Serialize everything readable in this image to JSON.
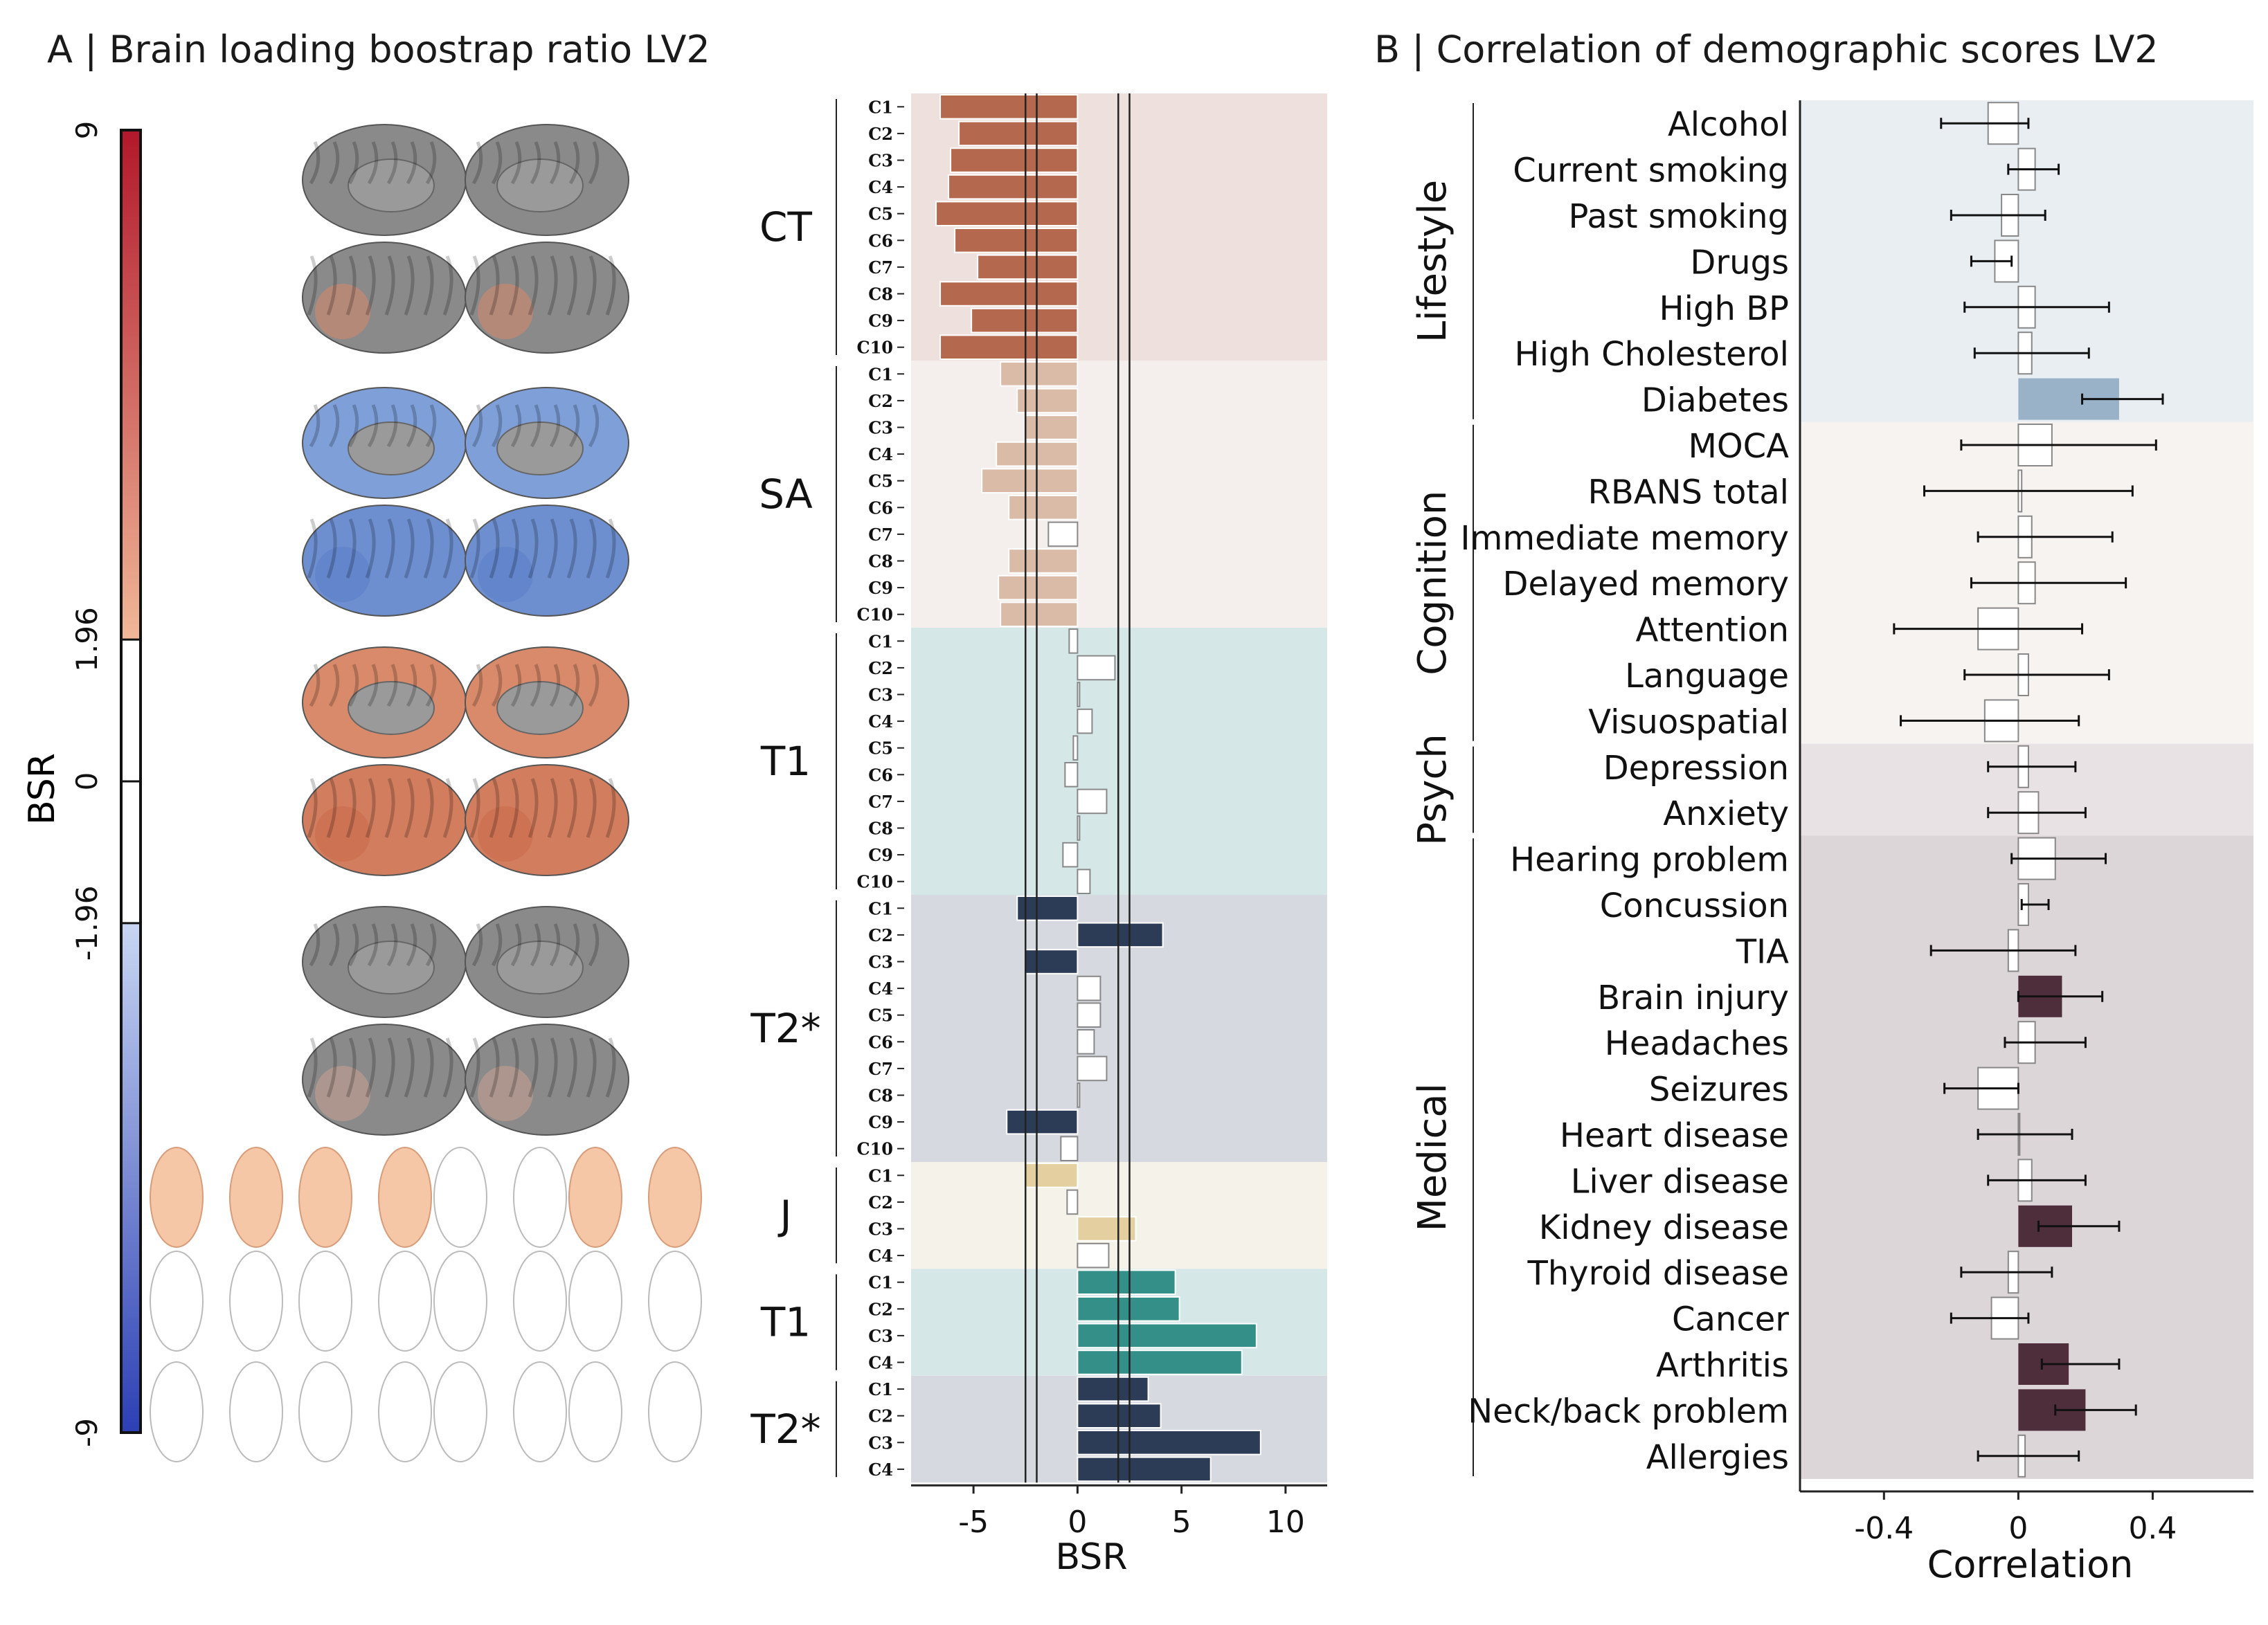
{
  "panel_a": {
    "title": "A | Brain loading boostrap ratio LV2",
    "colorbar": {
      "label": "BSR",
      "ticks": [
        "9",
        "1.96",
        "0",
        "-1.96",
        "-9"
      ],
      "tick_values": [
        9,
        1.96,
        0,
        -1.96,
        -9
      ],
      "colors": {
        "max": "#b2182b",
        "upper_light": "#f0b898",
        "lower_light": "#c8d6f2",
        "min": "#2c3fb4",
        "blank": "#ffffff"
      }
    },
    "brain_rows": [
      {
        "metric": "CT",
        "medial_color": "#8a8a8a",
        "lateral_color": "#8a8a8a",
        "accent": "#d9896a"
      },
      {
        "metric": "SA",
        "medial_color": "#7f9fd8",
        "lateral_color": "#6d8fd0",
        "accent": "#5a7ec6"
      },
      {
        "metric": "T1",
        "medial_color": "#d88a6a",
        "lateral_color": "#d27d5e",
        "accent": "#c86a4a"
      },
      {
        "metric": "T2*",
        "medial_color": "#8a8a8a",
        "lateral_color": "#8a8a8a",
        "accent": "#c9a090"
      }
    ],
    "subcortical_colors": [
      "#f5c7a6",
      "#ffffff"
    ]
  },
  "chart_data": [
    {
      "type": "bar",
      "orientation": "horizontal",
      "xlabel": "BSR",
      "xlim": [
        -8,
        12
      ],
      "xticks": [
        -5,
        0,
        5,
        10
      ],
      "reference_lines": [
        -2.5,
        -1.96,
        1.96,
        2.5
      ],
      "groups": [
        {
          "name": "CT",
          "bg": "#eee0dd",
          "color": "#b4694e",
          "categories": [
            "C1",
            "C2",
            "C3",
            "C4",
            "C5",
            "C6",
            "C7",
            "C8",
            "C9",
            "C10"
          ],
          "values": [
            -6.6,
            -5.7,
            -6.1,
            -6.2,
            -6.8,
            -5.9,
            -4.8,
            -6.6,
            -5.1,
            -6.6
          ]
        },
        {
          "name": "SA",
          "bg": "#f4efec",
          "color": "#d9bba8",
          "categories": [
            "C1",
            "C2",
            "C3",
            "C4",
            "C5",
            "C6",
            "C7",
            "C8",
            "C9",
            "C10"
          ],
          "values": [
            -3.7,
            -2.9,
            -2.5,
            -3.9,
            -4.6,
            -3.3,
            -1.4,
            -3.3,
            -3.8,
            -3.7
          ]
        },
        {
          "name": "T1",
          "bg": "#d6e7e7",
          "color": "#d6e7e7",
          "categories": [
            "C1",
            "C2",
            "C3",
            "C4",
            "C5",
            "C6",
            "C7",
            "C8",
            "C9",
            "C10"
          ],
          "values": [
            -0.4,
            1.8,
            0.1,
            0.7,
            -0.2,
            -0.6,
            1.4,
            0.1,
            -0.7,
            0.6
          ]
        },
        {
          "name": "T2*",
          "bg": "#d6d9df",
          "color": "#2d3c56",
          "categories": [
            "C1",
            "C2",
            "C3",
            "C4",
            "C5",
            "C6",
            "C7",
            "C8",
            "C9",
            "C10"
          ],
          "values": [
            -2.9,
            4.1,
            -2.5,
            1.1,
            1.1,
            0.8,
            1.4,
            0.1,
            -3.4,
            -0.8
          ]
        },
        {
          "name": "J",
          "bg": "#f5f2ea",
          "color": "#e3cfa0",
          "categories": [
            "C1",
            "C2",
            "C3",
            "C4"
          ],
          "values": [
            -2.5,
            -0.5,
            2.8,
            1.5
          ]
        },
        {
          "name": "T1",
          "bg": "#d6e7e7",
          "color": "#338f87",
          "categories": [
            "C1",
            "C2",
            "C3",
            "C4"
          ],
          "values": [
            4.7,
            4.9,
            8.6,
            7.9
          ]
        },
        {
          "name": "T2*",
          "bg": "#d6d9df",
          "color": "#2d3c56",
          "categories": [
            "C1",
            "C2",
            "C3",
            "C4"
          ],
          "values": [
            3.4,
            4.0,
            8.8,
            6.4
          ]
        }
      ]
    },
    {
      "type": "bar",
      "orientation": "horizontal",
      "title": "B | Correlation of demographic scores LV2",
      "xlabel": "Correlation",
      "xlim": [
        -0.65,
        0.7
      ],
      "xticks": [
        -0.4,
        0,
        0.4
      ],
      "xtick_labels": [
        "-0.4",
        "0",
        "0.4"
      ],
      "groups": [
        {
          "name": "Lifestyle",
          "bg": "#e9eef2",
          "significant_color": "#9ab2c8",
          "items": [
            {
              "label": "Alcohol",
              "r": -0.09,
              "ci": [
                -0.23,
                0.03
              ],
              "sig": false
            },
            {
              "label": "Current smoking",
              "r": 0.05,
              "ci": [
                -0.03,
                0.12
              ],
              "sig": false
            },
            {
              "label": "Past smoking",
              "r": -0.05,
              "ci": [
                -0.2,
                0.08
              ],
              "sig": false
            },
            {
              "label": "Drugs",
              "r": -0.07,
              "ci": [
                -0.14,
                -0.02
              ],
              "sig": false
            },
            {
              "label": "High BP",
              "r": 0.05,
              "ci": [
                -0.16,
                0.27
              ],
              "sig": false
            },
            {
              "label": "High Cholesterol",
              "r": 0.04,
              "ci": [
                -0.13,
                0.21
              ],
              "sig": false
            },
            {
              "label": "Diabetes",
              "r": 0.3,
              "ci": [
                0.19,
                0.43
              ],
              "sig": true
            }
          ]
        },
        {
          "name": "Cognition",
          "bg": "#f6f3f1",
          "significant_color": "#cfc3bd",
          "items": [
            {
              "label": "MOCA",
              "r": 0.1,
              "ci": [
                -0.17,
                0.41
              ],
              "sig": false
            },
            {
              "label": "RBANS total",
              "r": 0.01,
              "ci": [
                -0.28,
                0.34
              ],
              "sig": false
            },
            {
              "label": "Immediate memory",
              "r": 0.04,
              "ci": [
                -0.12,
                0.28
              ],
              "sig": false
            },
            {
              "label": "Delayed memory",
              "r": 0.05,
              "ci": [
                -0.14,
                0.32
              ],
              "sig": false
            },
            {
              "label": "Attention",
              "r": -0.12,
              "ci": [
                -0.37,
                0.19
              ],
              "sig": false
            },
            {
              "label": "Language",
              "r": 0.03,
              "ci": [
                -0.16,
                0.27
              ],
              "sig": false
            },
            {
              "label": "Visuospatial",
              "r": -0.1,
              "ci": [
                -0.35,
                0.18
              ],
              "sig": false
            }
          ]
        },
        {
          "name": "Psych",
          "bg": "#e9e2e5",
          "significant_color": "#b9a7af",
          "items": [
            {
              "label": "Depression",
              "r": 0.03,
              "ci": [
                -0.09,
                0.17
              ],
              "sig": false
            },
            {
              "label": "Anxiety",
              "r": 0.06,
              "ci": [
                -0.09,
                0.2
              ],
              "sig": false
            }
          ]
        },
        {
          "name": "Medical",
          "bg": "#dcd6d8",
          "significant_color": "#4f2e3b",
          "items": [
            {
              "label": "Hearing problem",
              "r": 0.11,
              "ci": [
                -0.02,
                0.26
              ],
              "sig": false
            },
            {
              "label": "Concussion",
              "r": 0.03,
              "ci": [
                0.01,
                0.09
              ],
              "sig": false
            },
            {
              "label": "TIA",
              "r": -0.03,
              "ci": [
                -0.26,
                0.17
              ],
              "sig": false
            },
            {
              "label": "Brain injury",
              "r": 0.13,
              "ci": [
                0.0,
                0.25
              ],
              "sig": true
            },
            {
              "label": "Headaches",
              "r": 0.05,
              "ci": [
                -0.04,
                0.2
              ],
              "sig": false
            },
            {
              "label": "Seizures",
              "r": -0.12,
              "ci": [
                -0.22,
                0.0
              ],
              "sig": false
            },
            {
              "label": "Heart disease",
              "r": 0.0,
              "ci": [
                -0.12,
                0.16
              ],
              "sig": false
            },
            {
              "label": "Liver disease",
              "r": 0.04,
              "ci": [
                -0.09,
                0.2
              ],
              "sig": false
            },
            {
              "label": "Kidney disease",
              "r": 0.16,
              "ci": [
                0.06,
                0.3
              ],
              "sig": true
            },
            {
              "label": "Thyroid disease",
              "r": -0.03,
              "ci": [
                -0.17,
                0.1
              ],
              "sig": false
            },
            {
              "label": "Cancer",
              "r": -0.08,
              "ci": [
                -0.2,
                0.03
              ],
              "sig": false
            },
            {
              "label": "Arthritis",
              "r": 0.15,
              "ci": [
                0.07,
                0.3
              ],
              "sig": true
            },
            {
              "label": "Neck/back problem",
              "r": 0.2,
              "ci": [
                0.11,
                0.35
              ],
              "sig": true
            },
            {
              "label": "Allergies",
              "r": 0.02,
              "ci": [
                -0.12,
                0.18
              ],
              "sig": false
            }
          ]
        }
      ]
    }
  ]
}
